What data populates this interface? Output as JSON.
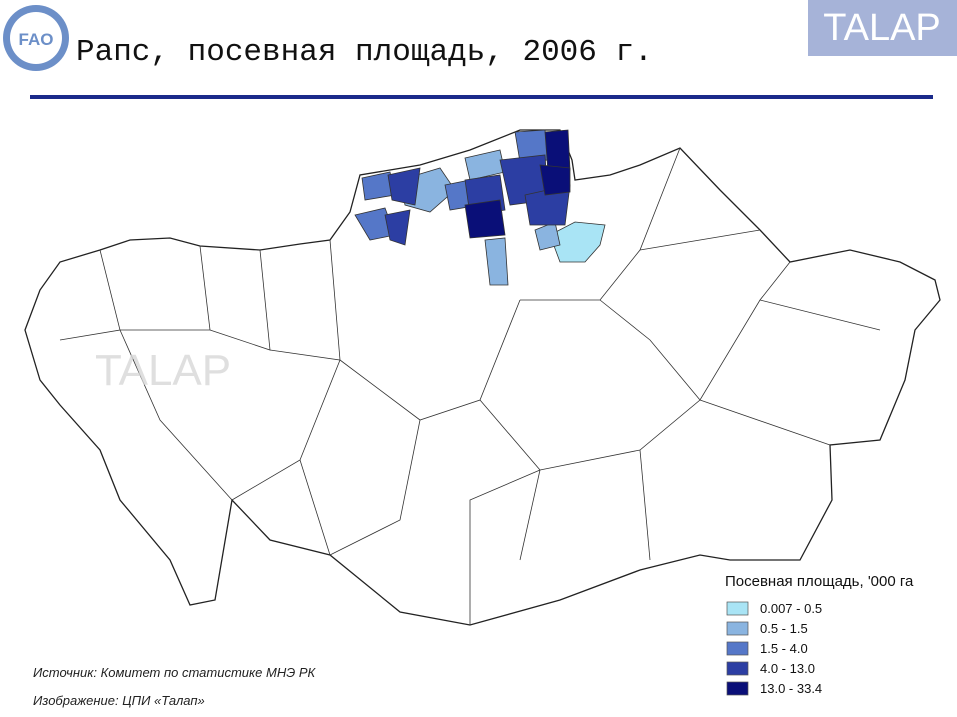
{
  "header": {
    "title": "Рапс, посевная площадь, 2006 г.",
    "logo_text": "TALAP",
    "fao_text": "FAO"
  },
  "map": {
    "watermark": "TALAP"
  },
  "legend": {
    "title": "Посевная площадь, '000 га",
    "items": [
      {
        "label": "0.007 - 0.5",
        "color": "#a9e4f5"
      },
      {
        "label": "0.5 - 1.5",
        "color": "#8ab4e0"
      },
      {
        "label": "1.5 - 4.0",
        "color": "#5577c8"
      },
      {
        "label": "4.0 - 13.0",
        "color": "#2c3ea3"
      },
      {
        "label": "13.0 - 33.4",
        "color": "#0a0f78"
      }
    ]
  },
  "footer": {
    "source": "Источник: Комитет по статистике МНЭ РК",
    "credit": "Изображение: ЦПИ «Талап»"
  }
}
